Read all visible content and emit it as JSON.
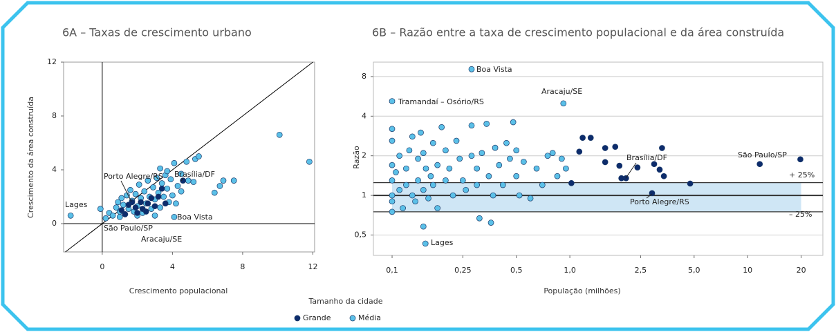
{
  "legend": {
    "title": "Tamanho da cidade"
  },
  "chart_data": [
    {
      "type": "scatter",
      "title": "6A – Taxas de crescimento urbano",
      "x_label": "Crescimento populacional",
      "y_label": "Crescimento da área construída",
      "xlim": [
        -2.2,
        12.1
      ],
      "ylim": [
        -2.1,
        12
      ],
      "xticks": [
        0,
        4,
        8,
        12
      ],
      "yticks": [
        0,
        4,
        8,
        12
      ],
      "grid": false,
      "series": [
        {
          "name": "Grande",
          "color": "#0d2c6c",
          "x": [
            1.1,
            1.3,
            1.5,
            1.7,
            1.9,
            2.0,
            2.2,
            2.3,
            2.5,
            2.6,
            2.8,
            3.0,
            3.2,
            3.4,
            3.6,
            4.6
          ],
          "y": [
            1.0,
            0.7,
            1.4,
            1.6,
            1.2,
            0.8,
            1.6,
            1.1,
            0.9,
            1.5,
            1.9,
            1.3,
            2.0,
            2.6,
            1.5,
            3.2
          ]
        },
        {
          "name": "Média",
          "color": "#5bc0e8",
          "x": [
            -1.8,
            -0.1,
            0.4,
            0.6,
            0.8,
            0.9,
            1.0,
            1.1,
            1.2,
            1.3,
            1.4,
            1.5,
            1.6,
            1.7,
            1.8,
            1.9,
            2.0,
            2.1,
            2.2,
            2.3,
            2.4,
            2.5,
            2.6,
            2.7,
            2.8,
            2.9,
            3.0,
            3.1,
            3.2,
            3.3,
            3.4,
            3.5,
            3.6,
            3.7,
            3.8,
            3.9,
            4.0,
            4.1,
            4.1,
            4.3,
            4.5,
            4.8,
            4.9,
            5.2,
            5.3,
            5.5,
            6.4,
            6.7,
            6.9,
            7.5,
            10.1,
            11.8,
            3.3,
            3.7,
            0.2,
            1.0,
            2.0,
            3.0,
            4.2,
            4.5
          ],
          "y": [
            0.6,
            1.1,
            0.8,
            0.6,
            1.2,
            1.6,
            0.9,
            1.9,
            1.4,
            0.7,
            2.1,
            1.1,
            2.5,
            1.7,
            0.9,
            2.2,
            1.3,
            2.9,
            1.9,
            0.8,
            2.4,
            1.5,
            3.2,
            2.0,
            1.1,
            2.7,
            1.8,
            3.4,
            2.3,
            1.2,
            3.0,
            2.0,
            3.6,
            2.6,
            1.6,
            3.3,
            2.1,
            0.5,
            4.5,
            2.8,
            3.7,
            4.6,
            3.2,
            3.1,
            4.8,
            5.0,
            2.3,
            2.8,
            3.2,
            3.2,
            6.6,
            4.6,
            4.1,
            3.9,
            0.4,
            0.5,
            0.6,
            0.6,
            1.5,
            2.4
          ]
        }
      ],
      "annotations": [
        "Lages",
        "Boa Vista",
        "Brasília/DF",
        "Porto Alegre/RS",
        "São Paulo/SP",
        "Aracaju/SE"
      ]
    },
    {
      "type": "scatter",
      "title": "6B – Razão entre a taxa de crescimento populacional e da área construída",
      "x_label": "População (milhões)",
      "y_label": "Razão",
      "xscale": "log",
      "yscale": "log",
      "xlim": [
        0.0785,
        26.5
      ],
      "ylim": [
        0.35,
        10.3
      ],
      "xticks": [
        {
          "value": 0.1,
          "label": "0,1"
        },
        {
          "value": 0.25,
          "label": "0,25"
        },
        {
          "value": 0.5,
          "label": "0,5"
        },
        {
          "value": 1,
          "label": "1,0"
        },
        {
          "value": 2.5,
          "label": "2,5"
        },
        {
          "value": 5,
          "label": "5,0"
        },
        10,
        20
      ],
      "yticks": [
        {
          "value": 0.5,
          "label": "0,5"
        },
        1,
        2,
        4,
        8
      ],
      "grid": true,
      "reference_lines": [
        1.25,
        1,
        0.75
      ],
      "series": [
        {
          "color": "#0d2c6c",
          "x": [
            19.8,
            2.07,
            2.9,
            11.7,
            4.75,
            3.38,
            3.2,
            2.98,
            3.3,
            2.4,
            1.9,
            1.8,
            1.58,
            1.58,
            1.31,
            1.18,
            1.13,
            1.02,
            1.95
          ],
          "y": [
            1.88,
            1.35,
            1.04,
            1.73,
            1.23,
            1.4,
            1.57,
            1.73,
            2.29,
            1.63,
            1.68,
            2.34,
            2.29,
            1.79,
            2.74,
            2.74,
            2.15,
            1.24,
            1.35
          ]
        },
        {
          "color": "#5bc0e8",
          "x": [
            0.1,
            0.1,
            0.1,
            0.1,
            0.1,
            0.1,
            0.1,
            0.105,
            0.11,
            0.11,
            0.115,
            0.12,
            0.12,
            0.125,
            0.13,
            0.13,
            0.135,
            0.14,
            0.14,
            0.145,
            0.15,
            0.15,
            0.155,
            0.16,
            0.165,
            0.17,
            0.17,
            0.18,
            0.18,
            0.19,
            0.2,
            0.2,
            0.21,
            0.22,
            0.23,
            0.24,
            0.25,
            0.26,
            0.28,
            0.28,
            0.3,
            0.3,
            0.32,
            0.34,
            0.35,
            0.37,
            0.38,
            0.4,
            0.42,
            0.44,
            0.46,
            0.48,
            0.5,
            0.5,
            0.52,
            0.55,
            0.6,
            0.65,
            0.7,
            0.75,
            0.8,
            0.85,
            0.9,
            0.95,
            0.28,
            0.1,
            0.92,
            0.154,
            0.31,
            0.36,
            0.15
          ],
          "y": [
            3.2,
            2.6,
            1.7,
            1.3,
            1.0,
            0.9,
            0.75,
            1.5,
            2.0,
            1.1,
            0.8,
            1.6,
            1.2,
            2.2,
            2.8,
            1.0,
            0.9,
            1.9,
            1.3,
            3.0,
            2.1,
            1.1,
            1.6,
            0.95,
            1.4,
            2.5,
            1.2,
            1.7,
            0.8,
            3.3,
            2.2,
            1.3,
            1.6,
            1.0,
            2.6,
            1.9,
            1.3,
            1.1,
            3.4,
            2.0,
            1.6,
            1.2,
            2.1,
            3.5,
            1.4,
            1.0,
            2.3,
            1.7,
            1.2,
            2.5,
            1.9,
            3.6,
            2.2,
            1.4,
            1.0,
            1.8,
            0.95,
            1.6,
            1.2,
            2.0,
            2.1,
            1.4,
            1.9,
            1.6,
            9.1,
            5.2,
            5.0,
            0.43,
            0.67,
            0.62,
            0.58
          ]
        }
      ],
      "annotations": [
        "Boa Vista",
        "Tramandaí – Osório/RS",
        "Aracaju/SE",
        "Lages",
        "São Paulo/SP",
        "Brasília/DF",
        "Porto Alegre/RS",
        "+ 25%",
        "– 25%"
      ]
    }
  ]
}
